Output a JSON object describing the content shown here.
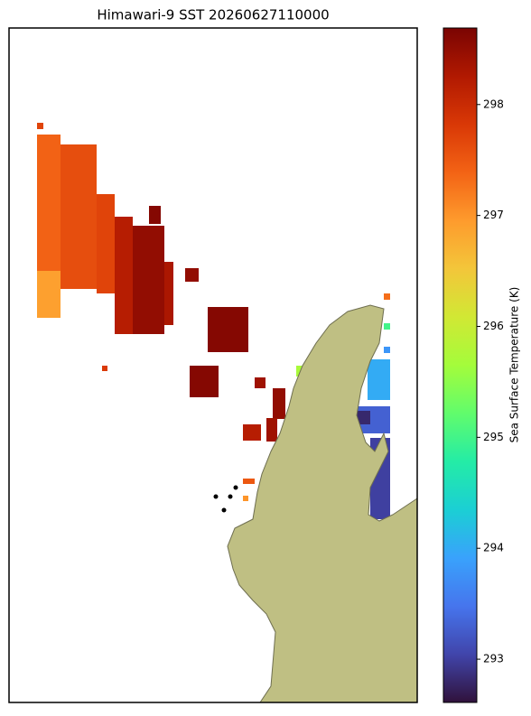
{
  "chart_data": {
    "type": "heatmap-map",
    "title": "Himawari-9 SST 20260627110000",
    "colorbar_label": "Sea Surface Temperature (K)",
    "colormap": "turbo",
    "clim": [
      292.61,
      298.69
    ],
    "cticks": [
      293,
      294,
      295,
      296,
      297,
      298
    ],
    "land_color": "#bfbf83",
    "values": [
      297.7,
      297.4,
      296.9,
      297.6,
      297.7,
      298.2,
      298.5,
      298.6,
      298.3,
      298.5,
      297.8,
      298.6,
      298.6,
      298.4,
      298.5,
      298.4,
      298.2,
      297.5,
      297.0,
      297.3,
      295.0,
      293.8,
      295.7,
      294.0,
      293.3,
      292.8,
      293.0
    ]
  }
}
